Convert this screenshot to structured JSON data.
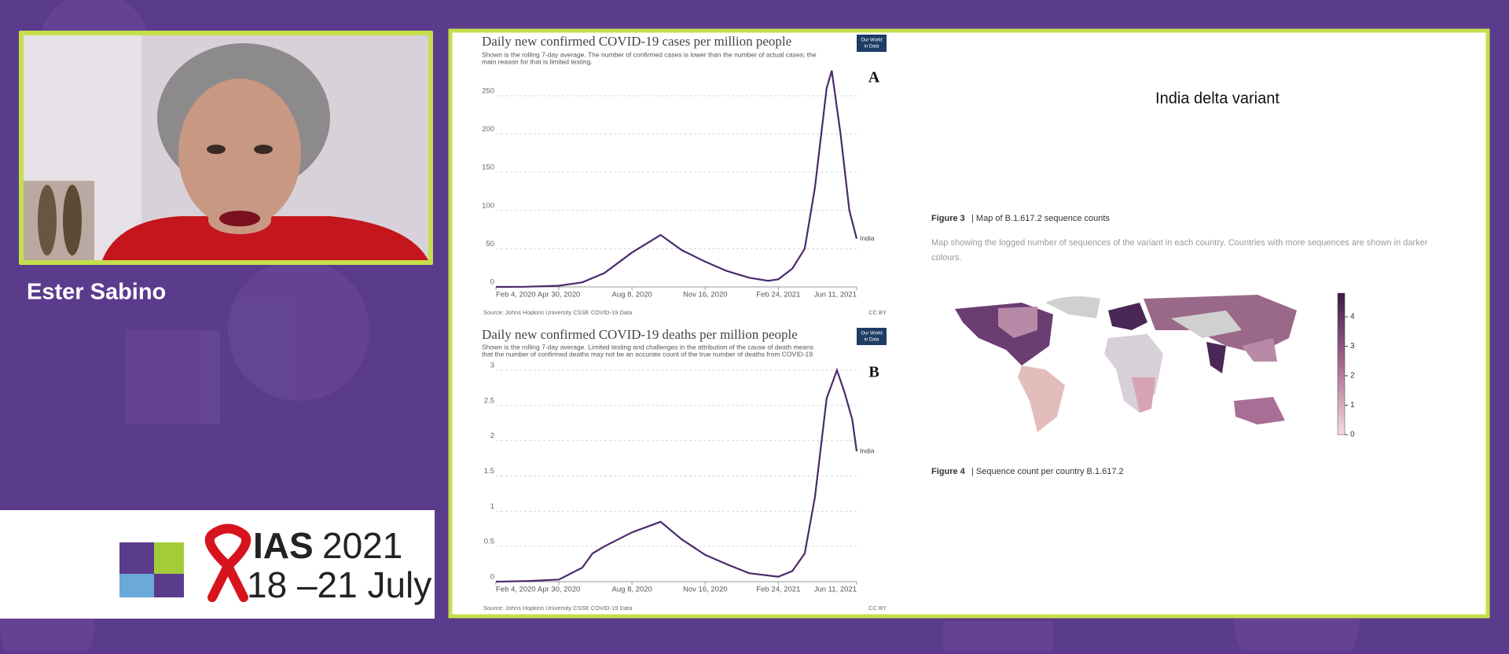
{
  "speaker": {
    "name": "Ester Sabino"
  },
  "logo": {
    "event": "IAS",
    "year": "2021",
    "dates": "18 –21 July"
  },
  "slide": {
    "charts": [
      {
        "type": "line",
        "label": "A",
        "title": "Daily new confirmed COVID-19 cases per million people",
        "subtitle": [
          "Shown is the rolling 7-day average. The number of confirmed cases is lower than the number of actual cases; the",
          "main reason for that is limited testing."
        ],
        "badge": [
          "Our World",
          "in Data"
        ],
        "source": "Source: Johns Hopkins University CSSE COVID-19 Data",
        "license": "CC BY",
        "series_name": "India",
        "color": "#4b2a6c",
        "x": [
          "2020-02-04",
          "2020-03-15",
          "2020-04-30",
          "2020-06-01",
          "2020-07-01",
          "2020-08-08",
          "2020-09-16",
          "2020-10-15",
          "2020-11-16",
          "2020-12-15",
          "2021-01-15",
          "2021-02-10",
          "2021-02-24",
          "2021-03-15",
          "2021-04-01",
          "2021-04-15",
          "2021-05-01",
          "2021-05-08",
          "2021-05-20",
          "2021-06-01",
          "2021-06-11"
        ],
        "values": [
          0,
          0.2,
          1.5,
          6,
          18,
          45,
          68,
          48,
          33,
          21,
          12,
          8,
          10,
          24,
          50,
          130,
          260,
          283,
          200,
          100,
          63
        ],
        "xlim": [
          "2020-02-04",
          "2021-06-11"
        ],
        "xticks": [
          {
            "value": "2020-02-04",
            "label": "Feb 4, 2020"
          },
          {
            "value": "2020-04-30",
            "label": "Apr 30, 2020"
          },
          {
            "value": "2020-08-08",
            "label": "Aug 8, 2020"
          },
          {
            "value": "2020-11-16",
            "label": "Nov 16, 2020"
          },
          {
            "value": "2021-02-24",
            "label": "Feb 24, 2021"
          },
          {
            "value": "2021-06-11",
            "label": "Jun 11, 2021"
          }
        ],
        "ylim": [
          0,
          290
        ],
        "yticks": [
          0,
          50,
          100,
          150,
          200,
          250
        ],
        "grid": true
      },
      {
        "type": "line",
        "label": "B",
        "title": "Daily new confirmed COVID-19 deaths per million people",
        "subtitle": [
          "Shown is the rolling 7-day average. Limited testing and challenges in the attribution of the cause of death means",
          "that the number of confirmed deaths may not be an accurate count of the true number of deaths from COVID-19."
        ],
        "badge": [
          "Our World",
          "in Data"
        ],
        "source": "Source: Johns Hopkins University CSSE COVID-19 Data",
        "license": "CC BY",
        "series_name": "India",
        "color": "#4b2a6c",
        "x": [
          "2020-02-04",
          "2020-03-20",
          "2020-04-30",
          "2020-06-01",
          "2020-06-15",
          "2020-07-01",
          "2020-08-08",
          "2020-09-16",
          "2020-10-15",
          "2020-11-16",
          "2020-12-15",
          "2021-01-15",
          "2021-02-24",
          "2021-03-15",
          "2021-04-01",
          "2021-04-15",
          "2021-05-01",
          "2021-05-15",
          "2021-05-25",
          "2021-06-05",
          "2021-06-11"
        ],
        "values": [
          0,
          0.01,
          0.03,
          0.2,
          0.4,
          0.5,
          0.7,
          0.85,
          0.6,
          0.38,
          0.25,
          0.12,
          0.07,
          0.15,
          0.4,
          1.2,
          2.6,
          3.0,
          2.7,
          2.3,
          1.85
        ],
        "xlim": [
          "2020-02-04",
          "2021-06-11"
        ],
        "xticks": [
          {
            "value": "2020-02-04",
            "label": "Feb 4, 2020"
          },
          {
            "value": "2020-04-30",
            "label": "Apr 30, 2020"
          },
          {
            "value": "2020-08-08",
            "label": "Aug 8, 2020"
          },
          {
            "value": "2020-11-16",
            "label": "Nov 16, 2020"
          },
          {
            "value": "2021-02-24",
            "label": "Feb 24, 2021"
          },
          {
            "value": "2021-06-11",
            "label": "Jun 11, 2021"
          }
        ],
        "ylim": [
          0,
          3.1
        ],
        "yticks": [
          0,
          0.5,
          1,
          1.5,
          2,
          2.5,
          3
        ],
        "grid": true
      }
    ],
    "right": {
      "heading": "India delta variant",
      "figure3_num": "Figure 3",
      "figure3_title": "| Map of B.1.617.2 sequence counts",
      "description": [
        "Map showing the logged number of sequences of the variant in each country. Countries with more sequences are shown in darker",
        "colours."
      ],
      "colorbar": {
        "lim": [
          0,
          4.8
        ],
        "ticks": [
          0,
          1,
          2,
          3,
          4
        ]
      },
      "figure4_num": "Figure 4",
      "figure4_title": "| Sequence count per country B.1.617.2"
    }
  }
}
